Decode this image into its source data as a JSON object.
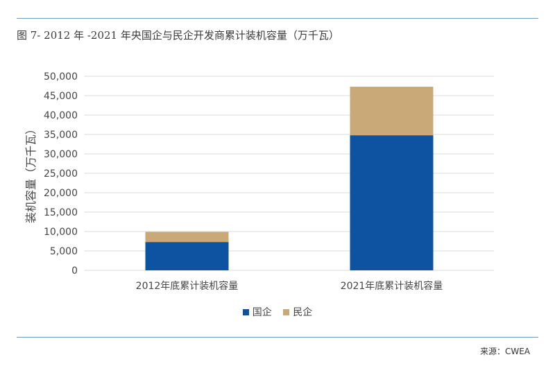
{
  "figure": {
    "title": "图 7- 2012 年 -2021 年央国企与民企开发商累计装机容量（万千瓦）",
    "source": "来源：CWEA"
  },
  "colors": {
    "state": "#0e53a2",
    "private": "#c8a977",
    "grid": "#d9d9d9",
    "rule": "#6f9fc4"
  },
  "chart_data": {
    "type": "bar",
    "stacked": true,
    "categories": [
      "2012年底累计装机容量",
      "2021年底累计装机容量"
    ],
    "series": [
      {
        "name": "国企",
        "values": [
          7300,
          34800
        ]
      },
      {
        "name": "民企",
        "values": [
          2600,
          12500
        ]
      }
    ],
    "title": "",
    "xlabel": "",
    "ylabel": "装机容量（万千瓦）",
    "ylim": [
      0,
      50000
    ],
    "yticks": [
      0,
      5000,
      10000,
      15000,
      20000,
      25000,
      30000,
      35000,
      40000,
      45000,
      50000
    ],
    "ytick_labels": [
      "0",
      "5,000",
      "10,000",
      "15,000",
      "20,000",
      "25,000",
      "30,000",
      "35,000",
      "40,000",
      "45,000",
      "50,000"
    ],
    "grid": true,
    "legend": "bottom"
  }
}
